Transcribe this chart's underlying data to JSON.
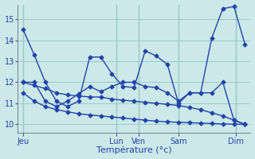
{
  "background_color": "#cce8e8",
  "grid_color": "#99cccc",
  "line_color": "#2244aa",
  "marker_style": "D",
  "marker_size": 2.5,
  "linewidth": 1.0,
  "ylim": [
    9.6,
    15.7
  ],
  "yticks": [
    10,
    11,
    12,
    13,
    14,
    15
  ],
  "xlabel": "Température (°c)",
  "xlabel_fontsize": 8,
  "tick_fontsize": 7,
  "day_labels": [
    "Jeu",
    "Lun",
    "Ven",
    "Sam",
    "Dim"
  ],
  "series": [
    {
      "x": [
        0,
        1,
        2,
        3,
        4,
        5,
        6,
        7,
        8,
        9,
        10,
        11,
        12,
        13,
        14,
        15,
        16,
        17,
        18,
        19,
        20
      ],
      "y": [
        14.5,
        13.3,
        12.0,
        11.1,
        10.85,
        11.1,
        13.2,
        13.2,
        12.4,
        11.8,
        11.75,
        13.5,
        13.25,
        12.85,
        11.0,
        11.5,
        11.5,
        14.1,
        15.5,
        15.6,
        13.8
      ]
    },
    {
      "x": [
        0,
        1,
        2,
        3,
        4,
        5,
        6,
        7,
        8,
        9,
        10,
        11,
        12,
        13,
        14,
        15,
        16,
        17,
        18,
        19,
        20
      ],
      "y": [
        12.0,
        12.0,
        11.1,
        10.85,
        11.1,
        11.45,
        11.8,
        11.55,
        11.8,
        12.0,
        12.0,
        11.8,
        11.75,
        11.5,
        11.1,
        11.5,
        11.5,
        11.5,
        12.0,
        10.2,
        10.0
      ]
    },
    {
      "x": [
        0,
        1,
        2,
        3,
        4,
        5,
        6,
        7,
        8,
        9,
        10,
        11,
        12,
        13,
        14,
        15,
        16,
        17,
        18,
        19,
        20
      ],
      "y": [
        12.0,
        11.85,
        11.7,
        11.5,
        11.4,
        11.35,
        11.3,
        11.3,
        11.2,
        11.15,
        11.1,
        11.05,
        11.0,
        10.95,
        10.9,
        10.8,
        10.7,
        10.55,
        10.4,
        10.2,
        10.0
      ]
    },
    {
      "x": [
        0,
        1,
        2,
        3,
        4,
        5,
        6,
        7,
        8,
        9,
        10,
        11,
        12,
        13,
        14,
        15,
        16,
        17,
        18,
        19,
        20
      ],
      "y": [
        11.5,
        11.1,
        10.85,
        10.7,
        10.6,
        10.5,
        10.45,
        10.4,
        10.35,
        10.3,
        10.25,
        10.2,
        10.15,
        10.12,
        10.1,
        10.08,
        10.06,
        10.04,
        10.02,
        10.01,
        10.0
      ]
    }
  ]
}
